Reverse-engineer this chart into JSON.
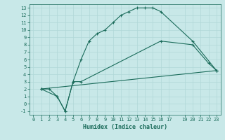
{
  "xlabel": "Humidex (Indice chaleur)",
  "bg_color": "#c8e8e8",
  "grid_color": "#b0d8d8",
  "line_color": "#1a6b5a",
  "xlim": [
    -0.5,
    23.5
  ],
  "ylim": [
    -1.5,
    13.5
  ],
  "xticks": [
    0,
    1,
    2,
    3,
    4,
    5,
    6,
    7,
    8,
    9,
    10,
    11,
    12,
    13,
    14,
    15,
    16,
    17,
    19,
    20,
    21,
    22,
    23
  ],
  "yticks": [
    -1,
    0,
    1,
    2,
    3,
    4,
    5,
    6,
    7,
    8,
    9,
    10,
    11,
    12,
    13
  ],
  "line1_x": [
    1,
    2,
    3,
    4,
    5,
    6,
    7,
    8,
    9,
    10,
    11,
    12,
    13,
    14,
    15,
    16,
    20,
    23
  ],
  "line1_y": [
    2,
    2,
    1,
    -1,
    3,
    6,
    8.5,
    9.5,
    10,
    11,
    12,
    12.5,
    13,
    13,
    13,
    12.5,
    8.5,
    4.5
  ],
  "line2_x": [
    1,
    3,
    4,
    5,
    6,
    16,
    20,
    22,
    23
  ],
  "line2_y": [
    2,
    1,
    -1,
    3,
    3,
    8.5,
    8,
    5.5,
    4.5
  ],
  "line3_x": [
    1,
    23
  ],
  "line3_y": [
    2,
    4.5
  ]
}
